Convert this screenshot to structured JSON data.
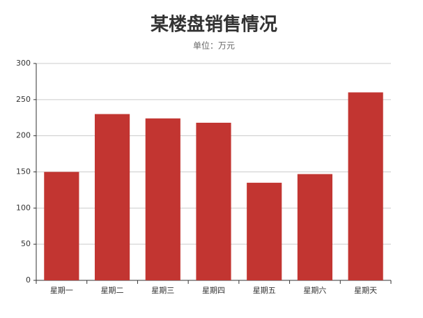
{
  "chart_data": {
    "type": "bar",
    "title": "某楼盘销售情况",
    "subtitle": "单位：万元",
    "categories": [
      "星期一",
      "星期二",
      "星期三",
      "星期四",
      "星期五",
      "星期六",
      "星期天"
    ],
    "values": [
      150,
      230,
      224,
      218,
      135,
      147,
      260
    ],
    "color": "#c23531",
    "ylim": [
      0,
      300
    ],
    "yticks": [
      0,
      50,
      100,
      150,
      200,
      250,
      300
    ],
    "grid": true
  }
}
